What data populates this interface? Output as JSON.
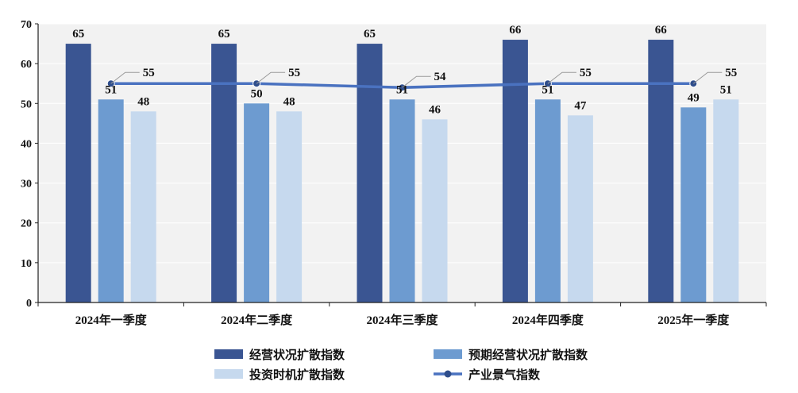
{
  "chart_data": {
    "type": "bar",
    "categories": [
      "2024年一季度",
      "2024年二季度",
      "2024年三季度",
      "2024年四季度",
      "2025年一季度"
    ],
    "series": [
      {
        "name": "经营状况扩散指数",
        "type": "bar",
        "color": "#3a5592",
        "values": [
          65,
          65,
          65,
          66,
          66
        ]
      },
      {
        "name": "预期经营状况扩散指数",
        "type": "bar",
        "color": "#6d9bd0",
        "values": [
          51,
          50,
          51,
          51,
          49
        ]
      },
      {
        "name": "投资时机扩散指数",
        "type": "bar",
        "color": "#c6d9ee",
        "values": [
          48,
          48,
          46,
          47,
          51
        ]
      },
      {
        "name": "产业景气指数",
        "type": "line",
        "color": "#4a72c0",
        "values": [
          55,
          55,
          54,
          55,
          55
        ]
      }
    ],
    "yticks": [
      "0",
      "10",
      "20",
      "30",
      "40",
      "50",
      "60",
      "70"
    ],
    "ylim": [
      0,
      70
    ],
    "xlabel": "",
    "ylabel": "",
    "title": "",
    "grid": true,
    "legend_position": "bottom"
  }
}
